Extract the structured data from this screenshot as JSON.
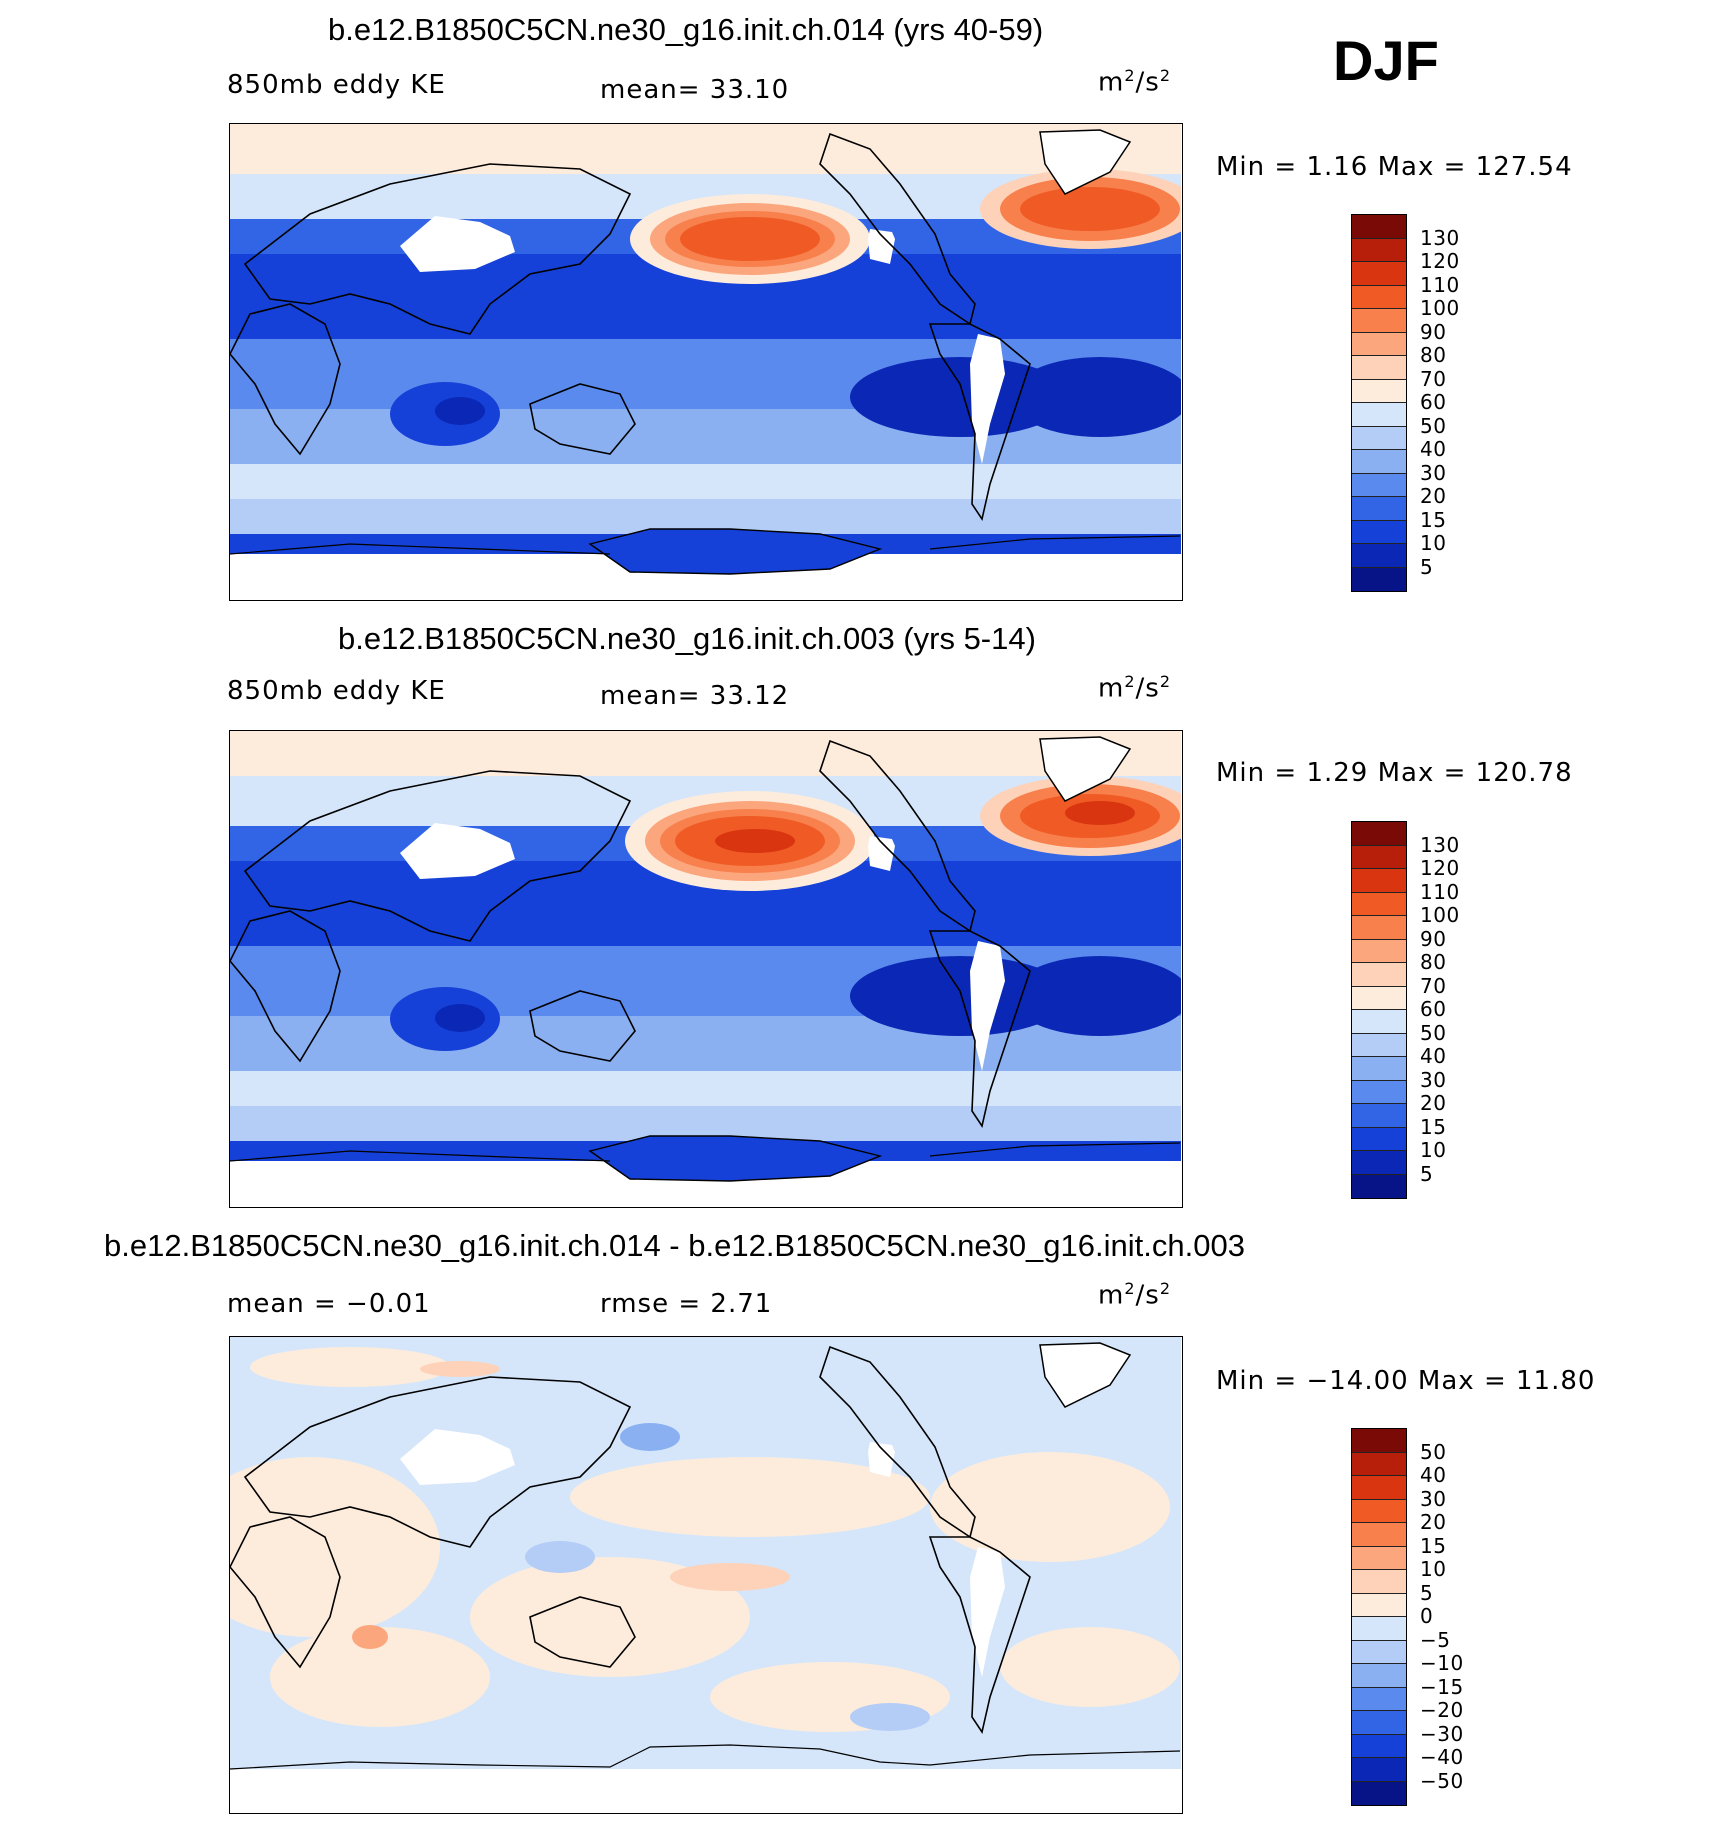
{
  "season": "DJF",
  "panels": [
    {
      "title": "b.e12.B1850C5CN.ne30_g16.init.ch.014 (yrs 40-59)",
      "left_label": "850mb eddy KE",
      "center_label": "mean=   33.10",
      "units": "m",
      "units_sup1": "2",
      "units_mid": "/s",
      "units_sup2": "2",
      "minmax": "Min  =     1.16  Max  =  127.54",
      "colorbar_ticks": [
        "130",
        "120",
        "110",
        "100",
        "90",
        "80",
        "70",
        "60",
        "50",
        "40",
        "30",
        "20",
        "15",
        "10",
        "5"
      ],
      "style": "abs"
    },
    {
      "title": "b.e12.B1850C5CN.ne30_g16.init.ch.003 (yrs 5-14)",
      "left_label": "850mb eddy KE",
      "center_label": "mean=   33.12",
      "units": "m",
      "units_sup1": "2",
      "units_mid": "/s",
      "units_sup2": "2",
      "minmax": "Min  =     1.29  Max  =  120.78",
      "colorbar_ticks": [
        "130",
        "120",
        "110",
        "100",
        "90",
        "80",
        "70",
        "60",
        "50",
        "40",
        "30",
        "20",
        "15",
        "10",
        "5"
      ],
      "style": "abs"
    },
    {
      "title": "b.e12.B1850C5CN.ne30_g16.init.ch.014 - b.e12.B1850C5CN.ne30_g16.init.ch.003",
      "left_label": "mean  =   −0.01",
      "center_label": "rmse  =     2.71",
      "units": "m",
      "units_sup1": "2",
      "units_mid": "/s",
      "units_sup2": "2",
      "minmax": "Min  =  −14.00  Max  =     11.80",
      "colorbar_ticks": [
        "50",
        "40",
        "30",
        "20",
        "15",
        "10",
        "5",
        "0",
        "−5",
        "−10",
        "−15",
        "−20",
        "−30",
        "−40",
        "−50"
      ],
      "style": "diff"
    }
  ],
  "colors": {
    "abs_scale": [
      "#7a0a05",
      "#b81f0a",
      "#d93510",
      "#f05a24",
      "#f7804c",
      "#fca67d",
      "#fdd2b8",
      "#fdecdc",
      "#d5e6fa",
      "#b3cdf6",
      "#8ab0f2",
      "#5b8aee",
      "#3265e6",
      "#1641d8",
      "#0a28b5",
      "#061488"
    ],
    "diff_scale": [
      "#7a0a05",
      "#b81f0a",
      "#d93510",
      "#f05a24",
      "#f7804c",
      "#fca67d",
      "#fdd2b8",
      "#fdecdc",
      "#d5e6fa",
      "#b3cdf6",
      "#8ab0f2",
      "#5b8aee",
      "#3265e6",
      "#1641d8",
      "#0a28b5",
      "#061488"
    ]
  }
}
